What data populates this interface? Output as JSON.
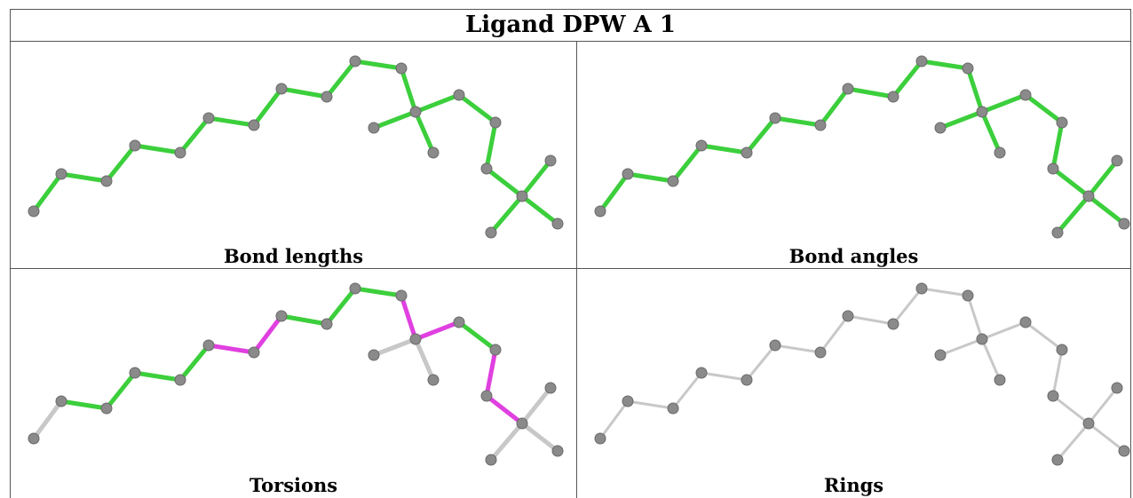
{
  "title": "Ligand DPW A 1",
  "panels": [
    {
      "id": "bond-lengths",
      "caption": "Bond lengths"
    },
    {
      "id": "bond-angles",
      "caption": "Bond angles"
    },
    {
      "id": "torsions",
      "caption": "Torsions"
    },
    {
      "id": "rings",
      "caption": "Rings"
    }
  ],
  "colors": {
    "ok_bond": "#3ccf3c",
    "flagged_bond": "#e040e0",
    "neutral_bond": "#c8c8c8",
    "atom": "#8a8a8a",
    "border": "#555555"
  }
}
